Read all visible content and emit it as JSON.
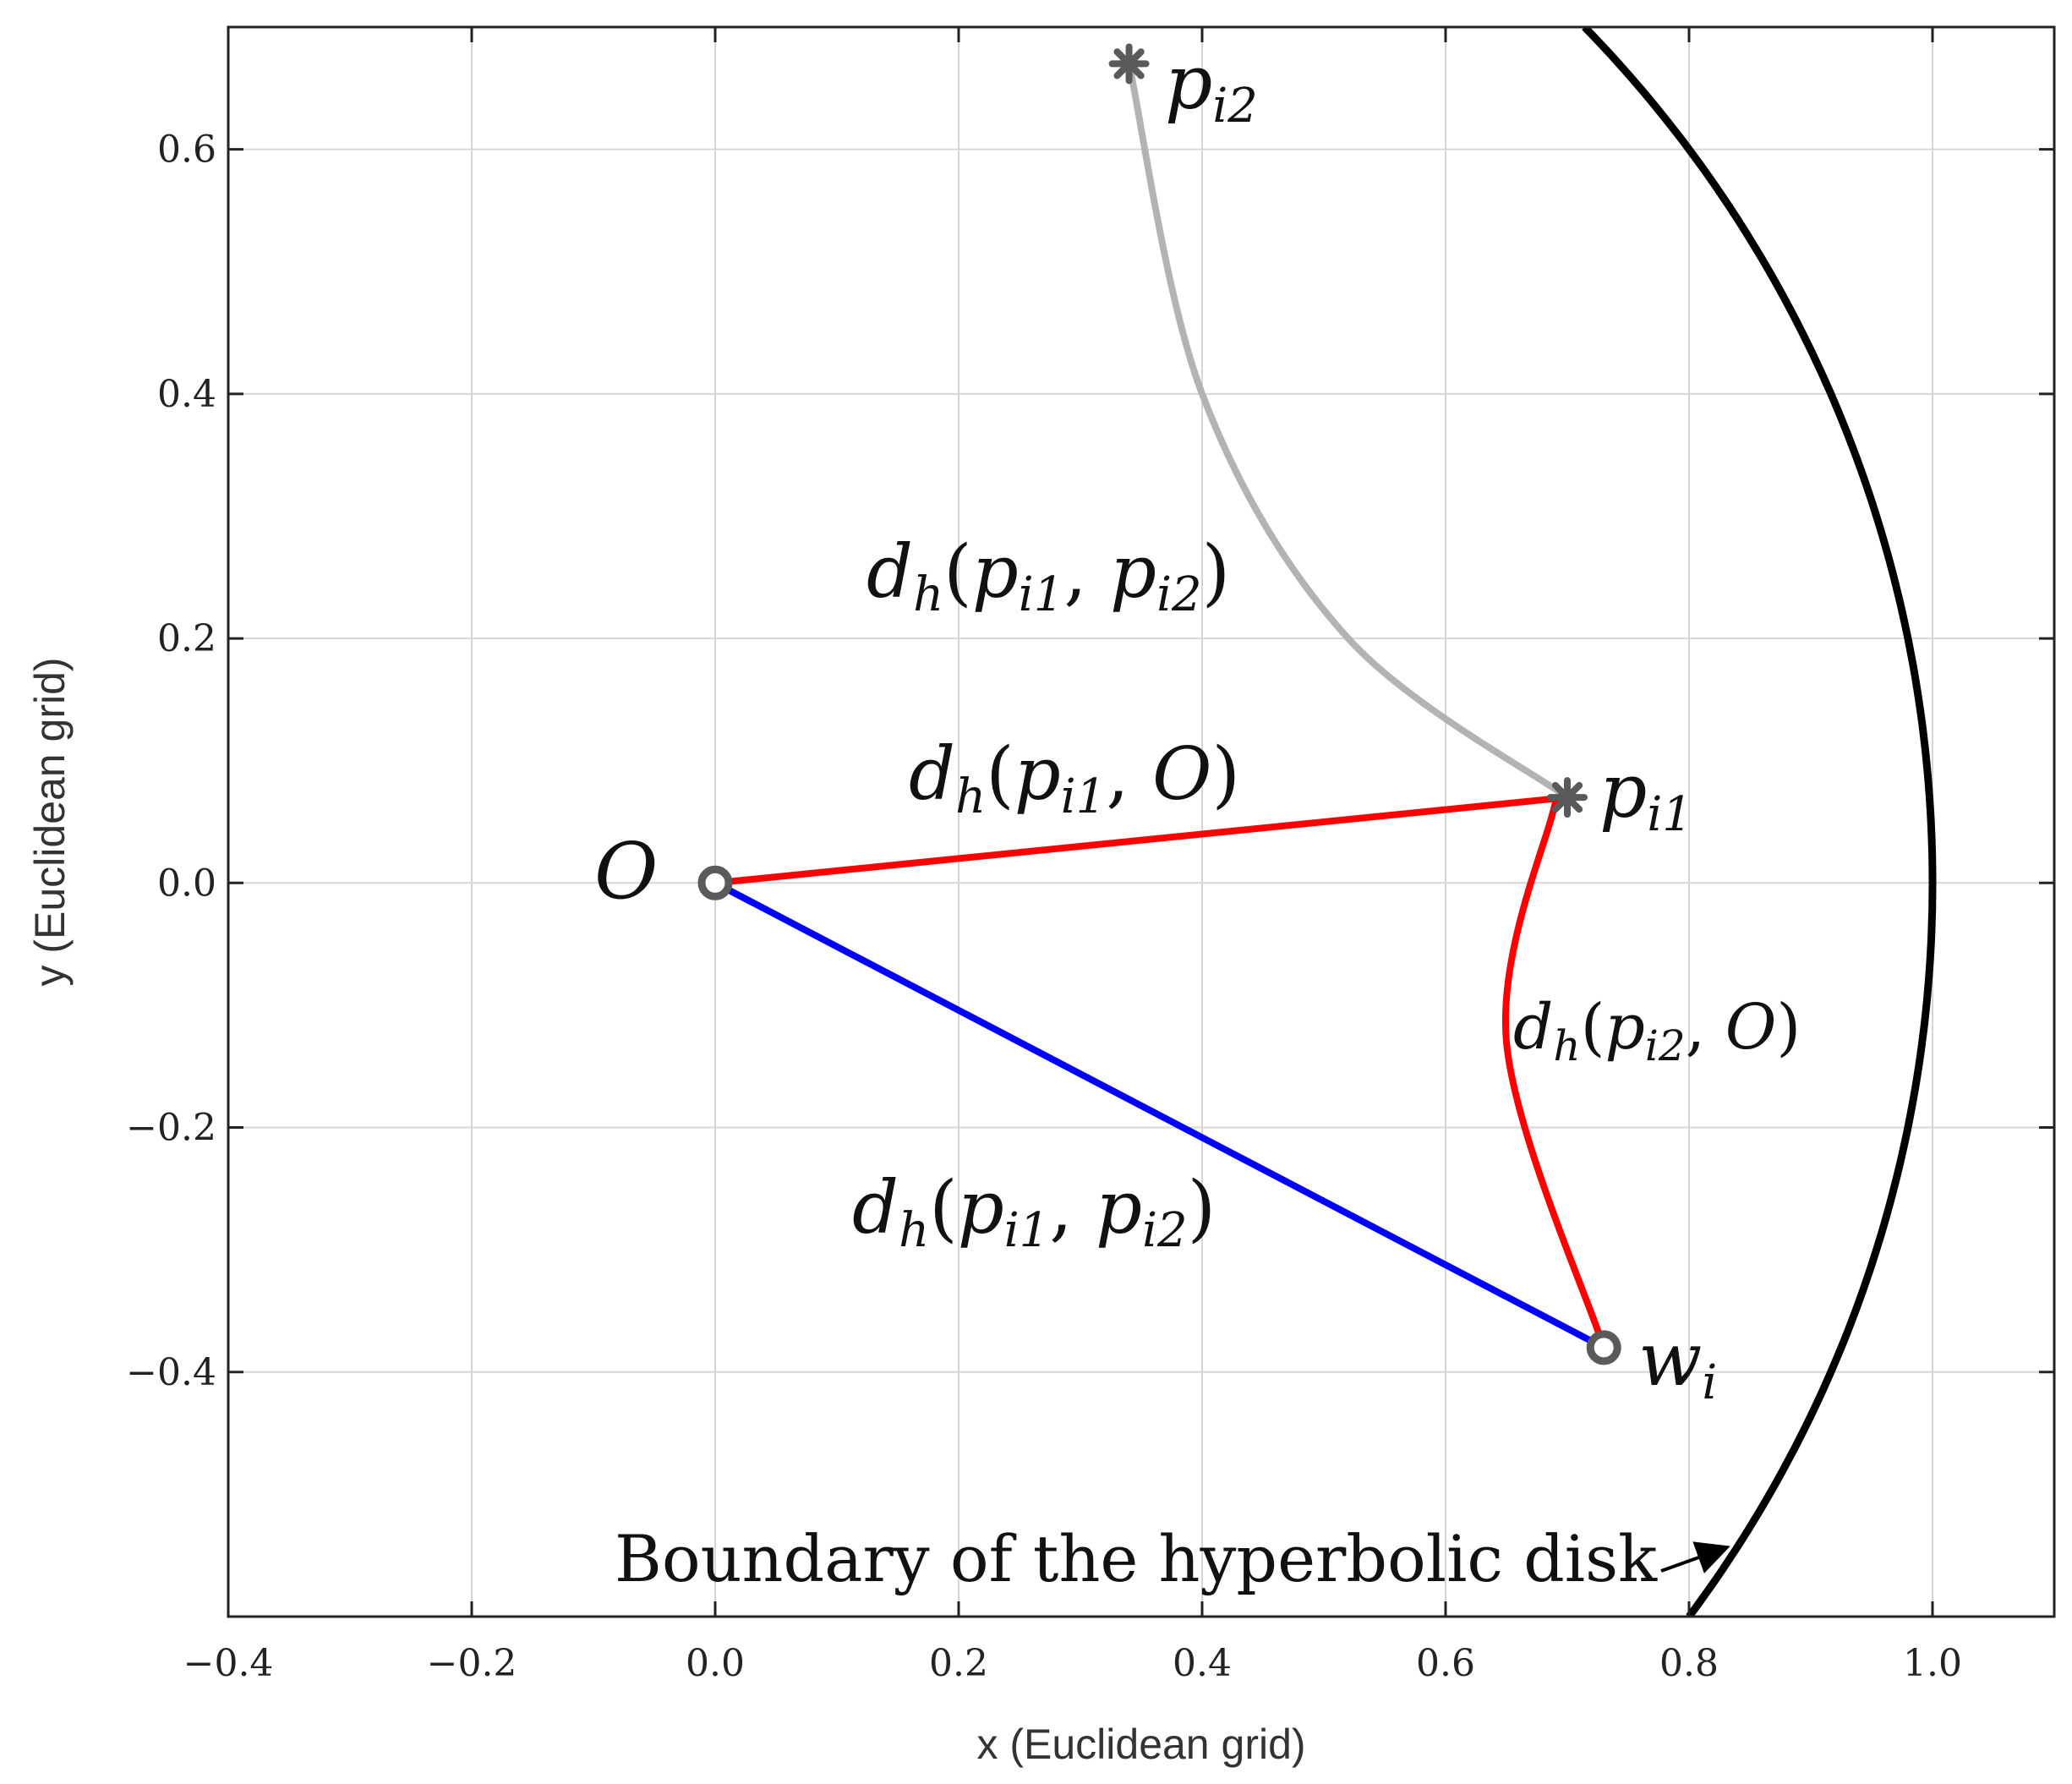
{
  "chart_data": {
    "type": "scatter",
    "xlabel": "x (Euclidean grid)",
    "ylabel": "y (Euclidean grid)",
    "xlim": [
      -0.4,
      1.1
    ],
    "ylim": [
      -0.6,
      0.7
    ],
    "x_ticks": [
      -0.4,
      -0.2,
      0.0,
      0.2,
      0.4,
      0.6,
      0.8,
      1.0
    ],
    "x_tick_labels": [
      "−0.4",
      "−0.2",
      "0.0",
      "0.2",
      "0.4",
      "0.6",
      "0.8",
      "1.0"
    ],
    "y_ticks": [
      0.6,
      0.4,
      0.2,
      0.0,
      -0.2,
      -0.4
    ],
    "y_tick_labels": [
      "0.6",
      "0.4",
      "0.2",
      "0.0",
      "−0.2",
      "−0.4"
    ],
    "grid": true,
    "points": {
      "O": {
        "x": 0.0,
        "y": 0.0,
        "marker": "circle"
      },
      "pi1": {
        "x": 0.7,
        "y": 0.07,
        "marker": "asterisk"
      },
      "pi2": {
        "x": 0.34,
        "y": 0.67,
        "marker": "asterisk"
      },
      "wi": {
        "x": 0.73,
        "y": -0.38,
        "marker": "circle"
      }
    },
    "segments": [
      {
        "name": "O to p_i1",
        "type": "straight",
        "from": [
          0.0,
          0.0
        ],
        "to": [
          0.7,
          0.07
        ],
        "color": "#ff0000"
      },
      {
        "name": "O to w_i",
        "type": "straight",
        "from": [
          0.0,
          0.0
        ],
        "to": [
          0.73,
          -0.38
        ],
        "color": "#0000ff"
      },
      {
        "name": "p_i1 to p_i2",
        "type": "curve",
        "points": [
          [
            0.7,
            0.07
          ],
          [
            0.52,
            0.2
          ],
          [
            0.4,
            0.4
          ],
          [
            0.34,
            0.67
          ]
        ],
        "color": "#b3b3b3"
      },
      {
        "name": "p_i1 to w_i",
        "type": "curve",
        "points": [
          [
            0.69,
            0.065
          ],
          [
            0.65,
            -0.13
          ],
          [
            0.73,
            -0.38
          ]
        ],
        "color": "#ff0000"
      }
    ],
    "boundary": {
      "type": "unit-circle-arc",
      "radius": 1.0,
      "y_range": [
        -0.6,
        0.7
      ],
      "color": "#000000"
    },
    "colors": {
      "axis": "#222222",
      "grid": "#d6d6d6",
      "marker": "#5a5a5a"
    }
  },
  "labels": {
    "O": "O",
    "pi1": {
      "base": "p",
      "sub": "i1"
    },
    "pi2": {
      "base": "p",
      "sub": "i2"
    },
    "wi": {
      "base": "w",
      "sub": "i"
    },
    "dist_top": {
      "d": "d",
      "h": "h",
      "p1": "p",
      "s1": "i1",
      "p2": "p",
      "s2": "i2"
    },
    "dist_mid": {
      "d": "d",
      "h": "h",
      "p1": "p",
      "s1": "i1",
      "o": "O"
    },
    "dist_arc": {
      "d": "d",
      "h": "h",
      "p1": "p",
      "s1": "i2",
      "o": "O"
    },
    "dist_bottom": {
      "d": "d",
      "h": "h",
      "p1": "p",
      "s1": "i1",
      "p2": "p",
      "s2": "i2"
    },
    "boundary_note": "Boundary of the hyperbolic disk"
  }
}
